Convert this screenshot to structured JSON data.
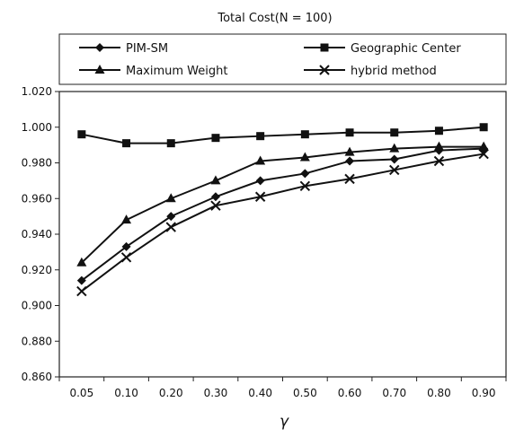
{
  "chart_data": {
    "type": "line",
    "title": "Total Cost(N = 100)",
    "xlabel": "γ",
    "ylabel": "",
    "categories": [
      "0.05",
      "0.10",
      "0.20",
      "0.30",
      "0.40",
      "0.50",
      "0.60",
      "0.70",
      "0.80",
      "0.90"
    ],
    "ylim": [
      0.86,
      1.02
    ],
    "yticks": [
      "0.860",
      "0.880",
      "0.900",
      "0.920",
      "0.940",
      "0.960",
      "0.980",
      "1.000",
      "1.020"
    ],
    "grid": false,
    "legend_position": "top",
    "series": [
      {
        "name": "PIM-SM",
        "marker": "diamond",
        "values": [
          0.914,
          0.933,
          0.95,
          0.961,
          0.97,
          0.974,
          0.981,
          0.982,
          0.987,
          0.988
        ]
      },
      {
        "name": "Geographic Center",
        "marker": "square",
        "values": [
          0.996,
          0.991,
          0.991,
          0.994,
          0.995,
          0.996,
          0.997,
          0.997,
          0.998,
          1.0
        ]
      },
      {
        "name": "Maximum Weight",
        "marker": "triangle",
        "values": [
          0.924,
          0.948,
          0.96,
          0.97,
          0.981,
          0.983,
          0.986,
          0.988,
          0.989,
          0.989
        ]
      },
      {
        "name": "hybrid method",
        "marker": "x",
        "values": [
          0.908,
          0.927,
          0.944,
          0.956,
          0.961,
          0.967,
          0.971,
          0.976,
          0.981,
          0.985
        ]
      }
    ],
    "colors": {
      "line": "#111111",
      "axis": "#222222",
      "background": "#ffffff"
    }
  }
}
